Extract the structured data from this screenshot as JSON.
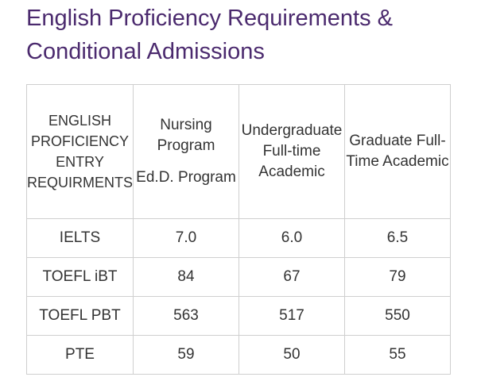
{
  "title": "English Proficiency Requirements & Conditional Admissions",
  "table": {
    "header": [
      "ENGLISH PROFICIENCY ENTRY REQUIRMENTS",
      [
        "Nursing Program",
        "Ed.D. Program"
      ],
      "Undergraduate Full-time Academic",
      "Graduate Full-Time Academic"
    ],
    "rows": [
      [
        "IELTS",
        "7.0",
        "6.0",
        "6.5"
      ],
      [
        "TOEFL iBT",
        "84",
        "67",
        "79"
      ],
      [
        "TOEFL PBT",
        "563",
        "517",
        "550"
      ],
      [
        "PTE",
        "59",
        "50",
        "55"
      ]
    ]
  }
}
